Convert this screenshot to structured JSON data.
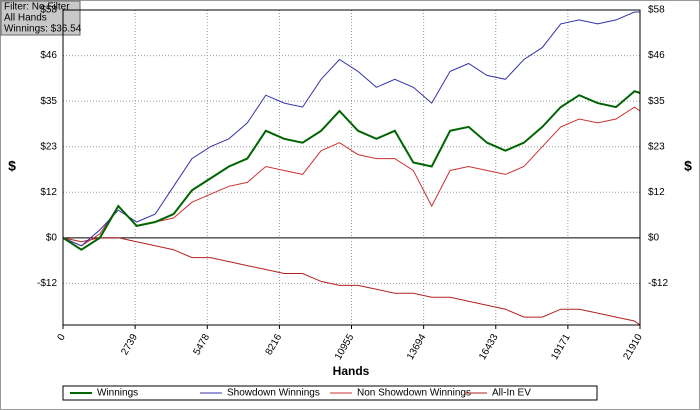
{
  "chart_data": {
    "type": "line",
    "annotations": [
      "Filter: No Filter",
      "All Hands",
      "Winnings: $36.54"
    ],
    "x_label": "Hands",
    "y_label": "$",
    "x": [
      0,
      700,
      1400,
      2100,
      2800,
      3500,
      4200,
      4900,
      5600,
      6300,
      7000,
      7700,
      8400,
      9100,
      9800,
      10500,
      11200,
      11900,
      12600,
      13300,
      14000,
      14700,
      15400,
      16100,
      16800,
      17500,
      18200,
      18900,
      19600,
      20300,
      21000,
      21700,
      21910
    ],
    "series": [
      {
        "name": "Winnings",
        "color": "#006400",
        "values": [
          0,
          -3,
          0,
          8,
          3,
          4,
          6,
          12,
          15,
          18,
          20,
          27,
          25,
          24,
          27,
          32,
          27,
          25,
          27,
          19,
          18,
          27,
          28,
          24,
          22,
          24,
          28,
          33,
          36,
          34,
          33,
          37,
          36.54
        ]
      },
      {
        "name": "Showdown Winnings",
        "color": "#3333aa",
        "values": [
          0,
          -2,
          2,
          7,
          4,
          6,
          13,
          20,
          23,
          25,
          29,
          36,
          34,
          33,
          40,
          45,
          42,
          38,
          40,
          38,
          34,
          42,
          44,
          41,
          40,
          45,
          48,
          54,
          55,
          54,
          55,
          57,
          57
        ]
      },
      {
        "name": "Non Showdown Winnings",
        "color": "#cc3333",
        "values": [
          0,
          -2,
          1,
          8,
          3,
          4,
          5,
          9,
          11,
          13,
          14,
          18,
          17,
          16,
          22,
          24,
          21,
          20,
          20,
          17,
          8,
          17,
          18,
          17,
          16,
          18,
          23,
          28,
          30,
          29,
          30,
          33,
          32
        ]
      },
      {
        "name": "All-In EV",
        "color": "#b22222",
        "values": [
          0,
          -1,
          0,
          0,
          -1,
          -2,
          -3,
          -5,
          -5,
          -6,
          -7,
          -8,
          -9,
          -9,
          -11,
          -12,
          -12,
          -13,
          -14,
          -14,
          -15,
          -15,
          -16,
          -17,
          -18,
          -20,
          -20,
          -18,
          -18,
          -19,
          -20,
          -21,
          -22
        ]
      }
    ],
    "xlim": [
      0,
      21910
    ],
    "xticks": [
      0,
      2739,
      5478,
      8216,
      10955,
      13694,
      16433,
      19171,
      21910
    ],
    "ylim": [
      -22,
      57.5
    ],
    "yticks": [
      {
        "value": 57.5,
        "label": "$58"
      },
      {
        "value": 46,
        "label": "$46"
      },
      {
        "value": 34.5,
        "label": "$35"
      },
      {
        "value": 23,
        "label": "$23"
      },
      {
        "value": 11.5,
        "label": "$12"
      },
      {
        "value": 0,
        "label": "$0"
      },
      {
        "value": -11.5,
        "label": "-$12"
      }
    ],
    "grid": true,
    "legend": "bottom"
  }
}
